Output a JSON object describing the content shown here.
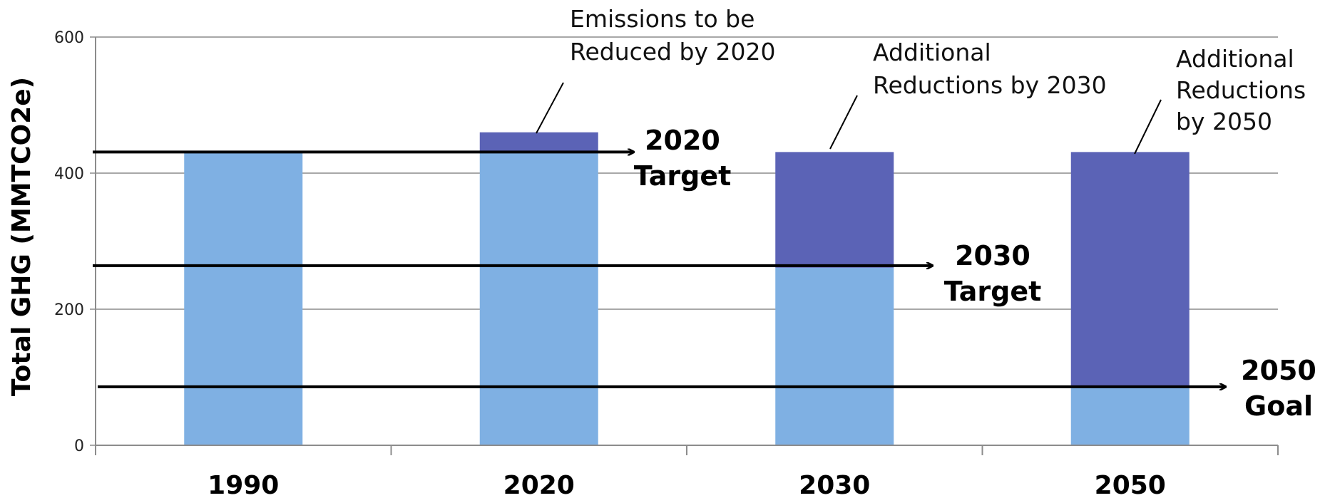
{
  "chart_data": {
    "type": "bar",
    "stacked": true,
    "categories": [
      "1990",
      "2020",
      "2030",
      "2050"
    ],
    "series": [
      {
        "values": [
          431,
          431,
          261,
          86
        ],
        "color": "#7FB0E3"
      },
      {
        "values": [
          0,
          29,
          170,
          345
        ],
        "color": "#5B63B6"
      }
    ],
    "ylabel": "Total GHG (MMTCO2e)",
    "ylim": [
      0,
      600
    ],
    "yticks": [
      0,
      200,
      400,
      600
    ],
    "grid": true,
    "targets": [
      {
        "value": 431,
        "label_lines": [
          "2020",
          "Target"
        ]
      },
      {
        "value": 264,
        "label_lines": [
          "2030",
          "Target"
        ]
      },
      {
        "value": 86,
        "label_lines": [
          "2050",
          "Goal"
        ]
      }
    ],
    "annotations": [
      {
        "category": "2020",
        "lines": [
          "Emissions to be",
          "Reduced by 2020"
        ]
      },
      {
        "category": "2030",
        "lines": [
          "Additional",
          "Reductions by 2030"
        ]
      },
      {
        "category": "2050",
        "lines": [
          "Additional",
          "Reductions",
          "by 2050"
        ]
      }
    ]
  }
}
